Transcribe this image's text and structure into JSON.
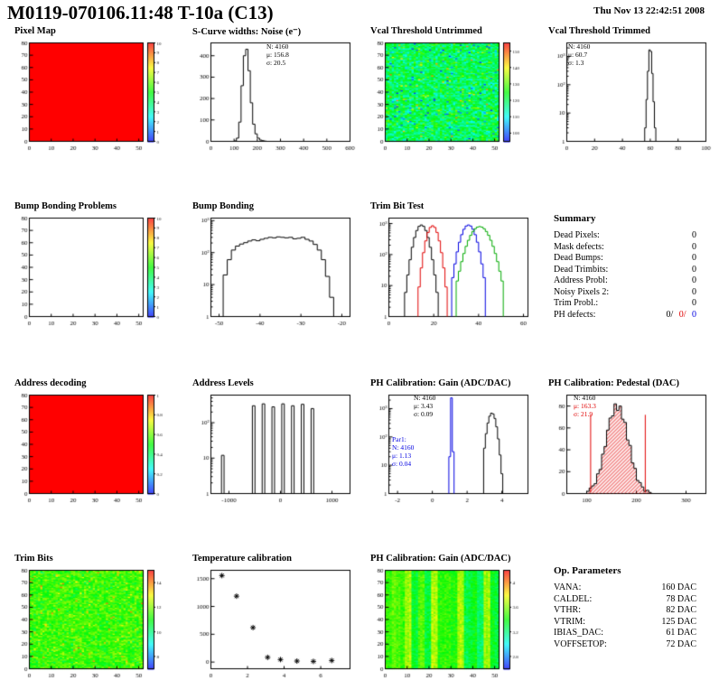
{
  "header": {
    "title": "M0119-070106.11:48 T-10a (C13)",
    "date": "Thu Nov 13 22:42:51 2008"
  },
  "summary": {
    "title": "Summary",
    "rows": [
      {
        "label": "Dead Pixels:",
        "value": "0"
      },
      {
        "label": "Mask defects:",
        "value": "0"
      },
      {
        "label": "Dead Bumps:",
        "value": "0"
      },
      {
        "label": "Dead Trimbits:",
        "value": "0"
      },
      {
        "label": "Address Probl:",
        "value": "0"
      },
      {
        "label": "Noisy Pixels 2:",
        "value": "0"
      },
      {
        "label": "Trim Probl.:",
        "value": "0"
      }
    ],
    "ph_defects": {
      "label": "PH defects:",
      "v1": "0/",
      "v2": "0/",
      "v3": "0"
    }
  },
  "op_params": {
    "title": "Op. Parameters",
    "rows": [
      {
        "label": "VANA:",
        "value": "160 DAC"
      },
      {
        "label": "CALDEL:",
        "value": "78 DAC"
      },
      {
        "label": "VTHR:",
        "value": "82 DAC"
      },
      {
        "label": "VTRIM:",
        "value": "125 DAC"
      },
      {
        "label": "IBIAS_DAC:",
        "value": "61 DAC"
      },
      {
        "label": "VOFFSETOP:",
        "value": "72 DAC"
      }
    ]
  },
  "chart_data": [
    {
      "id": "pixel-map",
      "type": "heatmap",
      "title": "Pixel Map",
      "x": {
        "min": 0,
        "max": 52,
        "ticks": [
          0,
          10,
          20,
          30,
          40,
          50
        ]
      },
      "y": {
        "min": 0,
        "max": 80,
        "ticks": [
          0,
          10,
          20,
          30,
          40,
          50,
          60,
          70,
          80
        ]
      },
      "mode": "solid",
      "color": "#ff0000",
      "colorbar": {
        "min": 0,
        "max": 10,
        "ticks": [
          0,
          1,
          2,
          3,
          4,
          5,
          6,
          7,
          8,
          9,
          10
        ]
      }
    },
    {
      "id": "scurve-noise",
      "type": "hist",
      "title": "S-Curve widths: Noise (e⁻)",
      "x": {
        "min": 0,
        "max": 600,
        "ticks": [
          0,
          100,
          200,
          300,
          400,
          500,
          600
        ]
      },
      "y": {
        "min": 0,
        "max": 460,
        "ticks": [
          0,
          100,
          200,
          300,
          400
        ]
      },
      "bins": {
        "x0": 100,
        "dx": 10,
        "counts": [
          2,
          15,
          90,
          260,
          400,
          430,
          330,
          180,
          80,
          35,
          15,
          6,
          3,
          1
        ]
      },
      "stats": {
        "n": "N: 4160",
        "mu": "μ: 156.8",
        "sigma": "σ: 20.5"
      }
    },
    {
      "id": "vcal-untrimmed",
      "type": "heatmap",
      "title": "Vcal Threshold Untrimmed",
      "x": {
        "min": 0,
        "max": 52,
        "ticks": [
          0,
          10,
          20,
          30,
          40,
          50
        ]
      },
      "y": {
        "min": 0,
        "max": 80,
        "ticks": [
          0,
          10,
          20,
          30,
          40,
          50,
          60,
          70,
          80
        ]
      },
      "mode": "noise",
      "seed": 7,
      "noise": {
        "mean": 0.42,
        "sd": 0.09,
        "p_low": 0.02,
        "p_high": 0.012
      },
      "colorbar": {
        "min": 95,
        "max": 155,
        "ticks": [
          100,
          110,
          120,
          130,
          140,
          150
        ]
      }
    },
    {
      "id": "vcal-trimmed",
      "type": "hist",
      "title": "Vcal Threshold Trimmed",
      "logy": true,
      "x": {
        "min": 0,
        "max": 100,
        "ticks": [
          0,
          20,
          40,
          60,
          80,
          100
        ]
      },
      "y": {
        "min": 1,
        "max": 3000
      },
      "bins": {
        "x0": 55,
        "dx": 1,
        "counts": [
          1,
          3,
          30,
          300,
          1700,
          1500,
          250,
          25,
          3,
          1
        ]
      },
      "stats": {
        "n": "N: 4160",
        "mu": "μ: 60.7",
        "sigma": "σ: 1.3"
      }
    },
    {
      "id": "bump-bonding-problems",
      "type": "heatmap",
      "title": "Bump Bonding Problems",
      "x": {
        "min": 0,
        "max": 52,
        "ticks": [
          0,
          10,
          20,
          30,
          40,
          50
        ]
      },
      "y": {
        "min": 0,
        "max": 80,
        "ticks": [
          0,
          10,
          20,
          30,
          40,
          50,
          60,
          70,
          80
        ]
      },
      "mode": "empty",
      "colorbar": {
        "min": 0,
        "max": 10,
        "ticks": [
          0,
          1,
          2,
          3,
          4,
          5,
          6,
          7,
          8,
          9,
          10
        ]
      }
    },
    {
      "id": "bump-bonding",
      "type": "hist",
      "title": "Bump Bonding",
      "logy": true,
      "x": {
        "min": -52,
        "max": -18,
        "ticks": [
          -50,
          -40,
          -30,
          -20
        ]
      },
      "y": {
        "min": 1,
        "max": 1200
      },
      "bins": {
        "x0": -49,
        "dx": 1,
        "counts": [
          20,
          60,
          120,
          160,
          185,
          205,
          230,
          250,
          235,
          260,
          280,
          300,
          290,
          310,
          300,
          290,
          300,
          270,
          280,
          300,
          260,
          230,
          180,
          120,
          60,
          18,
          4,
          1
        ]
      }
    },
    {
      "id": "trim-bit-test",
      "type": "multihist",
      "title": "Trim Bit Test",
      "logy": true,
      "x": {
        "min": 0,
        "max": 62,
        "ticks": [
          0,
          20,
          40,
          60
        ]
      },
      "y": {
        "min": 1,
        "max": 1500
      },
      "series": [
        {
          "color": "#000000",
          "x0": 7,
          "dx": 1,
          "counts": [
            6,
            22,
            68,
            172,
            355,
            596,
            812,
            900,
            812,
            596,
            355,
            172,
            68,
            22,
            6
          ]
        },
        {
          "color": "#e00000",
          "x0": 13,
          "dx": 1,
          "counts": [
            9,
            37,
            115,
            276,
            516,
            750,
            850,
            750,
            516,
            276,
            115,
            37,
            9
          ]
        },
        {
          "color": "#0000e0",
          "x0": 28,
          "dx": 1,
          "counts": [
            18,
            50,
            122,
            250,
            438,
            653,
            831,
            900,
            831,
            653,
            438,
            250,
            122,
            50,
            18
          ]
        },
        {
          "color": "#00aa00",
          "x0": 30,
          "dx": 1,
          "counts": [
            14,
            29,
            59,
            108,
            184,
            288,
            416,
            554,
            679,
            768,
            800,
            768,
            679,
            554,
            416,
            288,
            184,
            108,
            59,
            29,
            14
          ]
        }
      ]
    },
    {
      "id": "address-decoding",
      "type": "heatmap",
      "title": "Address decoding",
      "x": {
        "min": 0,
        "max": 52,
        "ticks": [
          0,
          10,
          20,
          30,
          40,
          50
        ]
      },
      "y": {
        "min": 0,
        "max": 80,
        "ticks": [
          0,
          10,
          20,
          30,
          40,
          50,
          60,
          70,
          80
        ]
      },
      "mode": "solid",
      "color": "#ff0000",
      "colorbar": {
        "min": 0,
        "max": 1,
        "ticks": [
          0,
          0.2,
          0.4,
          0.6,
          0.8,
          1
        ]
      }
    },
    {
      "id": "address-levels",
      "type": "spikes",
      "title": "Address Levels",
      "logy": true,
      "x": {
        "min": -1350,
        "max": 1350,
        "ticks": [
          -1000,
          0,
          1000
        ]
      },
      "y": {
        "min": 1,
        "max": 600
      },
      "spike_width": 50,
      "spikes": [
        [
          -1120,
          12
        ],
        [
          -520,
          300
        ],
        [
          -330,
          340
        ],
        [
          -140,
          280
        ],
        [
          50,
          340
        ],
        [
          240,
          300
        ],
        [
          430,
          330
        ],
        [
          620,
          250
        ]
      ]
    },
    {
      "id": "ph-gain",
      "type": "multihist",
      "title": "PH Calibration: Gain (ADC/DAC)",
      "logy": true,
      "x": {
        "min": -2.5,
        "max": 5.5,
        "ticks": [
          -2,
          0,
          2,
          4
        ]
      },
      "y": {
        "min": 1,
        "max": 3000
      },
      "series": [
        {
          "color": "#000000",
          "x0": 2.95,
          "dx": 0.1,
          "counts": [
            40,
            130,
            310,
            540,
            690,
            650,
            448,
            227,
            85,
            23,
            5
          ]
        },
        {
          "color": "#0000e0",
          "x0": 0.95,
          "dx": 0.1,
          "counts": [
            20,
            2400,
            30
          ]
        }
      ],
      "stats": {
        "n": "N: 4160",
        "mu": "μ: 3.43",
        "sigma": "σ: 0.09"
      },
      "stats2": {
        "label": "Par1:",
        "n": "N: 4160",
        "mu": "μ: 1.13",
        "sigma": "σ: 0.04"
      }
    },
    {
      "id": "ph-pedestal",
      "type": "hist",
      "title": "PH Calibration: Pedestal (DAC)",
      "x": {
        "min": 60,
        "max": 340,
        "ticks": [
          100,
          200,
          300
        ]
      },
      "y": {
        "min": 0,
        "max": 90,
        "ticks": [
          0,
          20,
          40,
          60,
          80
        ]
      },
      "fill": "hatch",
      "fill_color": "#e00000",
      "bins": {
        "x0": 100,
        "dx": 5,
        "counts": [
          2,
          5,
          7,
          9,
          18,
          22,
          36,
          43,
          58,
          69,
          71,
          82,
          76,
          80,
          68,
          65,
          49,
          44,
          28,
          23,
          12,
          10,
          6,
          2,
          3,
          1
        ]
      },
      "vlines": [
        {
          "x": 108,
          "color": "#e00000"
        },
        {
          "x": 218,
          "color": "#e00000"
        }
      ],
      "stats": {
        "n": "N: 4160",
        "mu": "μ: 163.3",
        "sigma": "σ: 21.9"
      }
    },
    {
      "id": "trim-bits",
      "type": "heatmap",
      "title": "Trim Bits",
      "x": {
        "min": 0,
        "max": 52,
        "ticks": [
          0,
          10,
          20,
          30,
          40,
          50
        ]
      },
      "y": {
        "min": 0,
        "max": 80,
        "ticks": [
          0,
          10,
          20,
          30,
          40,
          50,
          60,
          70,
          80
        ]
      },
      "mode": "noise",
      "seed": 13,
      "noise": {
        "mean": 0.55,
        "sd": 0.06,
        "p_low": 0.0,
        "p_high": 0.02
      },
      "colorbar": {
        "min": 7,
        "max": 15,
        "ticks": [
          8,
          10,
          12,
          14
        ]
      }
    },
    {
      "id": "temperature-calibration",
      "type": "scatter",
      "title": "Temperature calibration",
      "x": {
        "min": 0,
        "max": 7.6,
        "ticks": [
          0,
          2,
          4,
          6
        ]
      },
      "y": {
        "min": -120,
        "max": 1650,
        "ticks": [
          0,
          500,
          1000,
          1500
        ]
      },
      "points": [
        [
          0.6,
          1555
        ],
        [
          1.4,
          1185
        ],
        [
          2.3,
          620
        ],
        [
          3.1,
          85
        ],
        [
          3.8,
          45
        ],
        [
          4.7,
          18
        ],
        [
          5.6,
          12
        ],
        [
          6.6,
          28
        ]
      ]
    },
    {
      "id": "ph-gain-map",
      "type": "heatmap",
      "title": "PH Calibration: Gain (ADC/DAC)",
      "x": {
        "min": 0,
        "max": 52,
        "ticks": [
          0,
          10,
          20,
          30,
          40,
          50
        ]
      },
      "y": {
        "min": 0,
        "max": 80,
        "ticks": [
          0,
          10,
          20,
          30,
          40,
          50,
          60,
          70,
          80
        ]
      },
      "mode": "stripes",
      "seed": 21,
      "colorbar": {
        "min": 2.6,
        "max": 4.2,
        "ticks": [
          2.8,
          3.2,
          3.6,
          4
        ]
      }
    }
  ]
}
